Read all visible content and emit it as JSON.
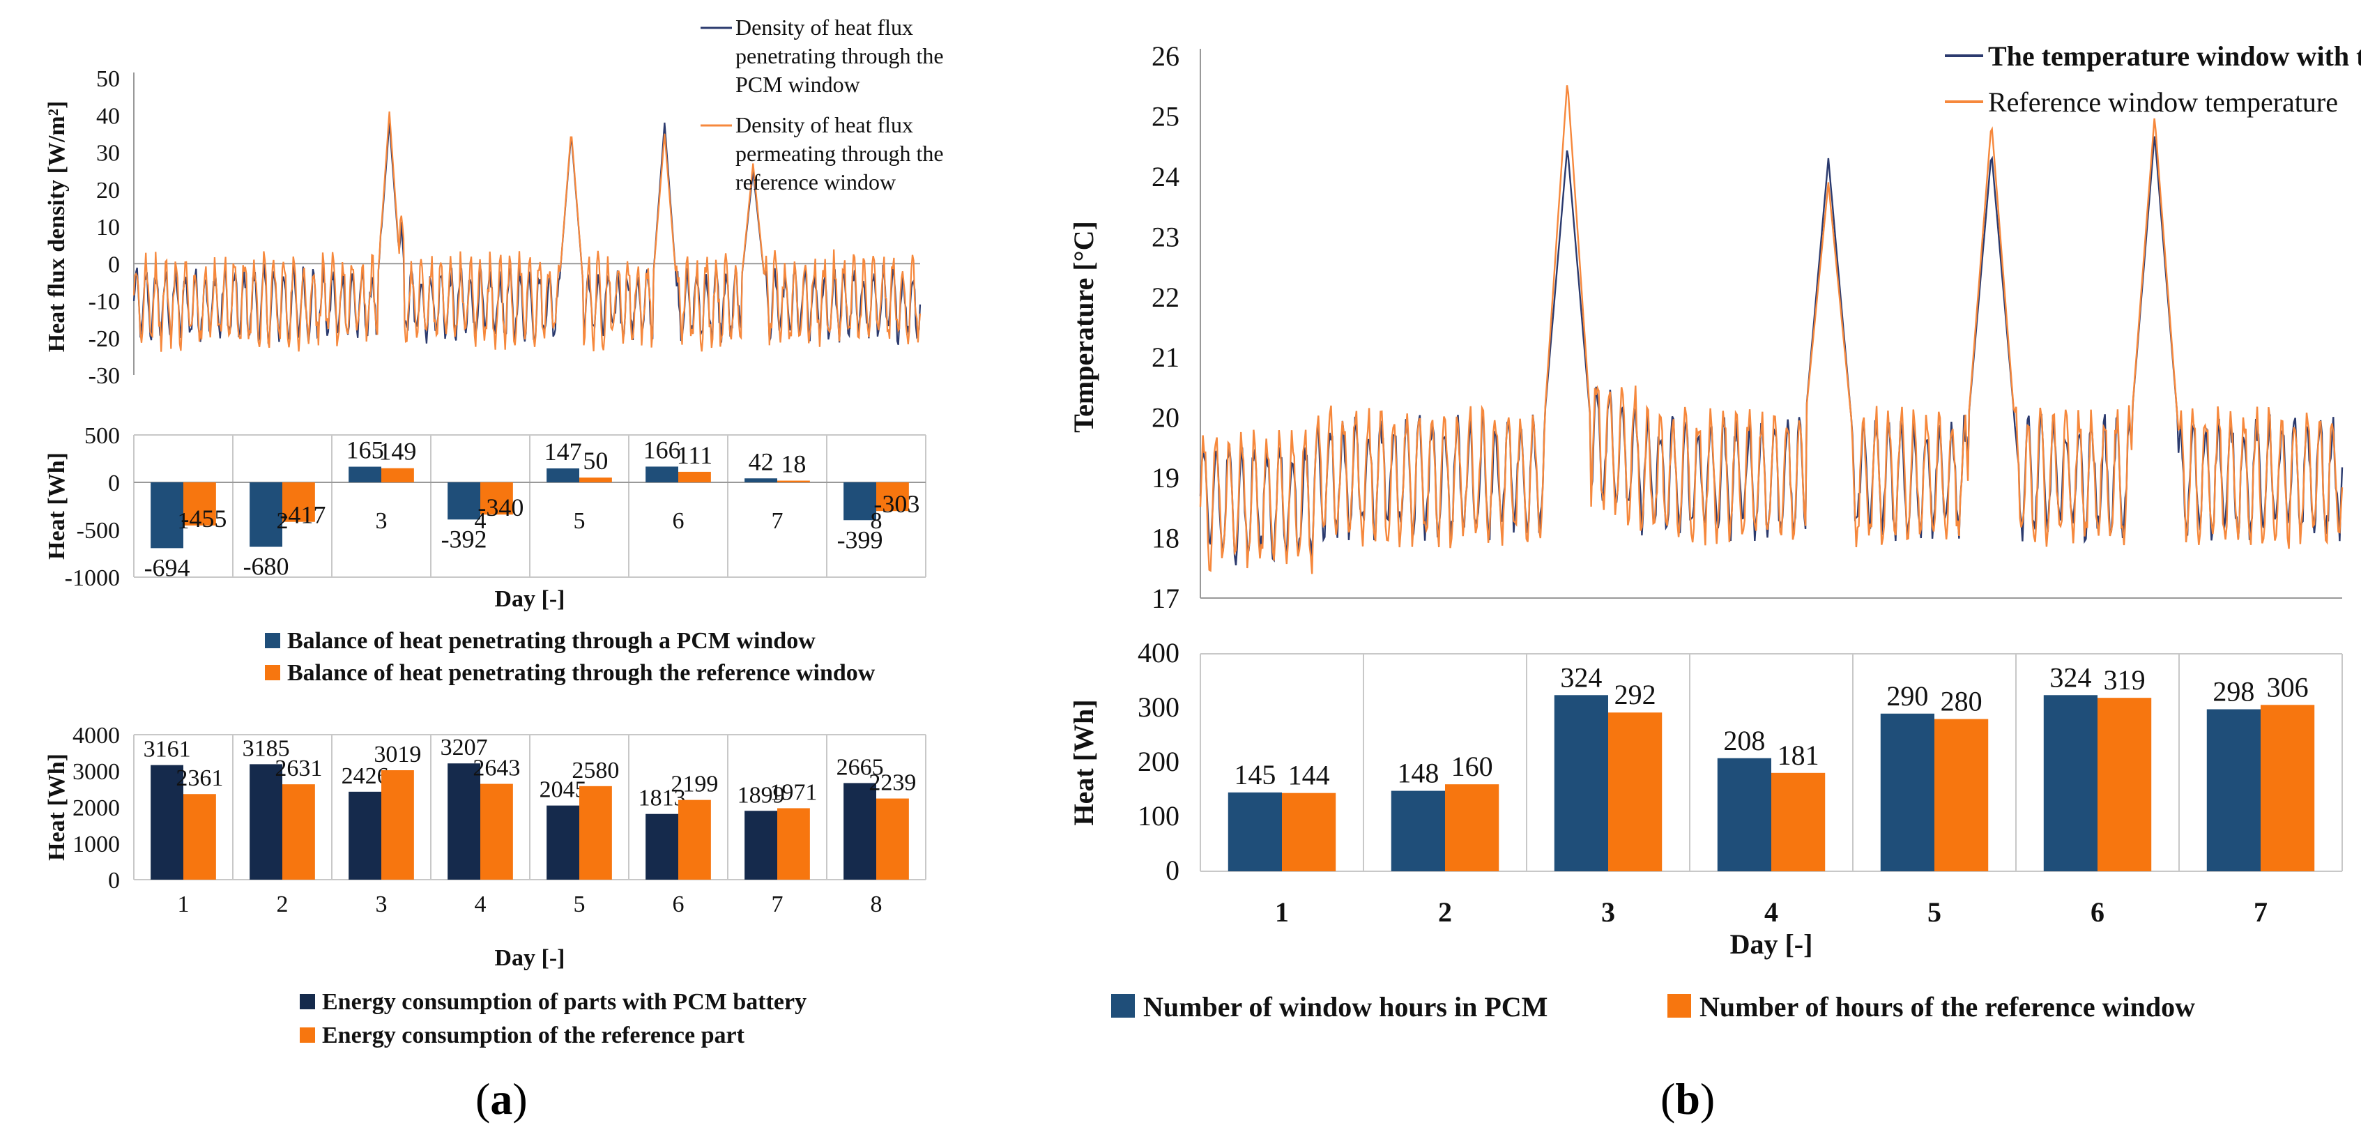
{
  "figure": {
    "panel_a": {
      "open": "(",
      "letter": "a",
      "close": ")"
    },
    "panel_b": {
      "open": "(",
      "letter": "b",
      "close": ")"
    }
  },
  "colors": {
    "pcm_line": "#2b3a6e",
    "ref_line": "#f6883c",
    "pcm_bar": "#1f4e79",
    "pcm_bar_dark": "#152a4c",
    "ref_bar": "#f7760f",
    "grid": "#c8c8c8",
    "axis": "#999999"
  },
  "chart_data": [
    {
      "id": "a1",
      "type": "line",
      "ylabel": "Heat flux density  [W/m²]",
      "ylim": [
        -30,
        50
      ],
      "yticks": [
        50,
        40,
        30,
        20,
        10,
        0,
        -10,
        -20,
        -30
      ],
      "xlim": [
        0,
        8
      ],
      "series": [
        {
          "name": "Density of heat flux penetrating through the PCM window",
          "legend_lines": [
            "Density of heat flux",
            "penetrating through the",
            "PCM window"
          ]
        },
        {
          "name": "Density of heat flux permeating through the reference window",
          "legend_lines": [
            "Density of heat flux",
            "permeating through the",
            "reference window"
          ]
        }
      ],
      "baseline": [
        -6,
        -5,
        14,
        -8,
        -8,
        8,
        4,
        -8
      ],
      "peaks": [
        {
          "day": 2.6,
          "pcm": 38,
          "ref": 41
        },
        {
          "day": 4.45,
          "pcm": 35,
          "ref": 36
        },
        {
          "day": 5.4,
          "pcm": 38,
          "ref": 35
        },
        {
          "day": 6.3,
          "pcm": 25,
          "ref": 27
        }
      ]
    },
    {
      "id": "a2",
      "type": "bar",
      "ylabel": "Heat [Wh]",
      "xlabel": "Day [-]",
      "ylim": [
        -1000,
        500
      ],
      "yticks": [
        500,
        0,
        -500,
        -1000
      ],
      "categories": [
        "1",
        "2",
        "3",
        "4",
        "5",
        "6",
        "7",
        "8"
      ],
      "series": [
        {
          "name": "Balance of heat penetrating through a PCM window",
          "values": [
            -694,
            -680,
            165,
            -392,
            147,
            166,
            42,
            -399
          ]
        },
        {
          "name": "Balance of heat penetrating through the reference window",
          "values": [
            -455,
            -417,
            149,
            -340,
            50,
            111,
            18,
            -303
          ]
        }
      ]
    },
    {
      "id": "a3",
      "type": "bar",
      "ylabel": "Heat [Wh]",
      "xlabel": "Day [-]",
      "ylim": [
        0,
        4000
      ],
      "yticks": [
        4000,
        3000,
        2000,
        1000,
        0
      ],
      "categories": [
        "1",
        "2",
        "3",
        "4",
        "5",
        "6",
        "7",
        "8"
      ],
      "series": [
        {
          "name": "Energy consumption of parts with PCM battery",
          "values": [
            3161,
            3185,
            2426,
            3207,
            2045,
            1813,
            1899,
            2665
          ]
        },
        {
          "name": "Energy consumption of the reference part",
          "values": [
            2361,
            2631,
            3019,
            2643,
            2580,
            2199,
            1971,
            2239
          ]
        }
      ]
    },
    {
      "id": "b1",
      "type": "line",
      "ylabel": "Temperature [°C]",
      "ylim": [
        17,
        26
      ],
      "yticks": [
        26,
        25,
        24,
        23,
        22,
        21,
        20,
        19,
        18,
        17
      ],
      "xlim": [
        0,
        7
      ],
      "series": [
        {
          "name": "The temperature window with the PCM"
        },
        {
          "name": "Reference window temperature"
        }
      ],
      "baseline": [
        18.6,
        19.0,
        19.1,
        19.0,
        18.9,
        18.8,
        18.9
      ],
      "peaks": [
        {
          "day": 2.25,
          "pcm": 24.5,
          "ref": 25.6
        },
        {
          "day": 3.85,
          "pcm": 24.3,
          "ref": 23.9
        },
        {
          "day": 4.85,
          "pcm": 24.4,
          "ref": 24.9
        },
        {
          "day": 5.85,
          "pcm": 24.7,
          "ref": 25.0
        }
      ]
    },
    {
      "id": "b2",
      "type": "bar",
      "ylabel": "Heat [Wh]",
      "xlabel": "Day [-]",
      "ylim": [
        0,
        400
      ],
      "yticks": [
        400,
        300,
        200,
        100,
        0
      ],
      "categories": [
        "1",
        "2",
        "3",
        "4",
        "5",
        "6",
        "7"
      ],
      "series": [
        {
          "name": "Number of window hours in PCM",
          "values": [
            145,
            148,
            324,
            208,
            290,
            324,
            298
          ]
        },
        {
          "name": "Number of hours of the reference window",
          "values": [
            144,
            160,
            292,
            181,
            280,
            319,
            306
          ]
        }
      ]
    }
  ]
}
